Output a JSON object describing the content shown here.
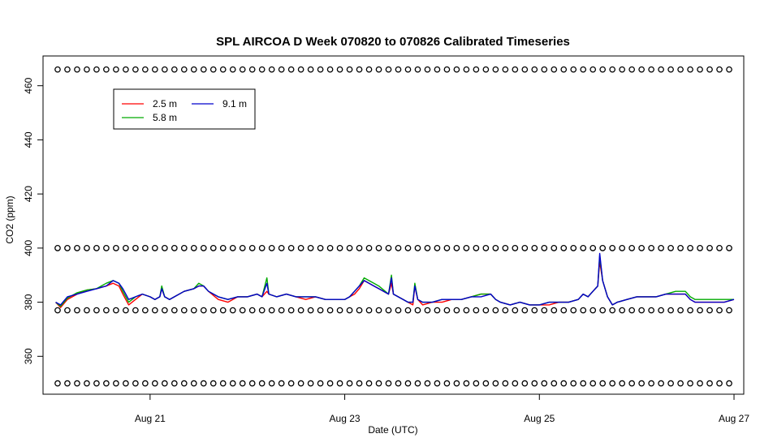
{
  "chart_data": {
    "type": "line",
    "title": "SPL AIRCOA D  Week 070820 to 070826  Calibrated Timeseries",
    "xlabel": "Date (UTC)",
    "ylabel": "CO2 (ppm)",
    "xlim": [
      19.9,
      27.1
    ],
    "ylim": [
      346,
      471
    ],
    "x_ticks": [
      {
        "value": 21,
        "label": "Aug 21"
      },
      {
        "value": 23,
        "label": "Aug 23"
      },
      {
        "value": 25,
        "label": "Aug 25"
      },
      {
        "value": 27,
        "label": "Aug 27"
      }
    ],
    "y_ticks": [
      360,
      380,
      400,
      420,
      440,
      460
    ],
    "grid": false,
    "legend_position": "top-left",
    "series": [
      {
        "name": "2.5 m",
        "color": "#ff0000",
        "points": [
          [
            20.03,
            380
          ],
          [
            20.08,
            378
          ],
          [
            20.15,
            381
          ],
          [
            20.25,
            383
          ],
          [
            20.35,
            384.5
          ],
          [
            20.45,
            385
          ],
          [
            20.55,
            386
          ],
          [
            20.62,
            387
          ],
          [
            20.68,
            386
          ],
          [
            20.72,
            383
          ],
          [
            20.78,
            379
          ],
          [
            20.85,
            381
          ],
          [
            20.92,
            383
          ],
          [
            21.0,
            382
          ],
          [
            21.05,
            381
          ],
          [
            21.1,
            382
          ],
          [
            21.12,
            385
          ],
          [
            21.15,
            382
          ],
          [
            21.2,
            381
          ],
          [
            21.25,
            382
          ],
          [
            21.35,
            384
          ],
          [
            21.45,
            385
          ],
          [
            21.5,
            386
          ],
          [
            21.55,
            386
          ],
          [
            21.6,
            384
          ],
          [
            21.7,
            381
          ],
          [
            21.8,
            380
          ],
          [
            21.9,
            382
          ],
          [
            22.0,
            382
          ],
          [
            22.1,
            383
          ],
          [
            22.15,
            382
          ],
          [
            22.2,
            384
          ],
          [
            22.22,
            383
          ],
          [
            22.3,
            382
          ],
          [
            22.4,
            383
          ],
          [
            22.5,
            382
          ],
          [
            22.6,
            381
          ],
          [
            22.7,
            382
          ],
          [
            22.8,
            381
          ],
          [
            22.9,
            381
          ],
          [
            23.0,
            381
          ],
          [
            23.05,
            382
          ],
          [
            23.1,
            383
          ],
          [
            23.15,
            385
          ],
          [
            23.2,
            388
          ],
          [
            23.3,
            386
          ],
          [
            23.35,
            385
          ],
          [
            23.45,
            383
          ],
          [
            23.48,
            387
          ],
          [
            23.5,
            383
          ],
          [
            23.6,
            381
          ],
          [
            23.65,
            380
          ],
          [
            23.7,
            379
          ],
          [
            23.72,
            386
          ],
          [
            23.75,
            381
          ],
          [
            23.8,
            379
          ],
          [
            23.9,
            380
          ],
          [
            24.0,
            380
          ],
          [
            24.1,
            381
          ],
          [
            24.2,
            381
          ],
          [
            24.3,
            382
          ],
          [
            24.4,
            383
          ],
          [
            24.5,
            383
          ],
          [
            24.55,
            381
          ],
          [
            24.6,
            380
          ],
          [
            24.7,
            379
          ],
          [
            24.8,
            380
          ],
          [
            24.9,
            379
          ],
          [
            25.0,
            379
          ],
          [
            25.1,
            379
          ],
          [
            25.2,
            380
          ],
          [
            25.3,
            380
          ],
          [
            25.4,
            381
          ],
          [
            25.45,
            383
          ],
          [
            25.5,
            382
          ],
          [
            25.55,
            384
          ],
          [
            25.6,
            386
          ],
          [
            25.62,
            395
          ],
          [
            25.65,
            388
          ],
          [
            25.7,
            382
          ],
          [
            25.75,
            379
          ],
          [
            25.8,
            380
          ],
          [
            25.9,
            381
          ],
          [
            26.0,
            382
          ],
          [
            26.1,
            382
          ],
          [
            26.2,
            382
          ],
          [
            26.3,
            383
          ],
          [
            26.4,
            383
          ],
          [
            26.5,
            383
          ],
          [
            26.55,
            381
          ],
          [
            26.6,
            380
          ],
          [
            26.7,
            380
          ],
          [
            26.8,
            380
          ],
          [
            26.9,
            380
          ],
          [
            27.0,
            381
          ]
        ]
      },
      {
        "name": "5.8 m",
        "color": "#00aa00",
        "points": [
          [
            20.03,
            380
          ],
          [
            20.08,
            378.5
          ],
          [
            20.15,
            381.5
          ],
          [
            20.25,
            383.5
          ],
          [
            20.35,
            384.5
          ],
          [
            20.45,
            385
          ],
          [
            20.55,
            387
          ],
          [
            20.62,
            388
          ],
          [
            20.68,
            387
          ],
          [
            20.72,
            384
          ],
          [
            20.78,
            380
          ],
          [
            20.85,
            382
          ],
          [
            20.92,
            383
          ],
          [
            21.0,
            382
          ],
          [
            21.05,
            381
          ],
          [
            21.1,
            382
          ],
          [
            21.12,
            386
          ],
          [
            21.15,
            382
          ],
          [
            21.2,
            381
          ],
          [
            21.25,
            382
          ],
          [
            21.35,
            384
          ],
          [
            21.45,
            385
          ],
          [
            21.5,
            387
          ],
          [
            21.55,
            386
          ],
          [
            21.6,
            384
          ],
          [
            21.7,
            382
          ],
          [
            21.8,
            381
          ],
          [
            21.9,
            382
          ],
          [
            22.0,
            382
          ],
          [
            22.1,
            383
          ],
          [
            22.15,
            382
          ],
          [
            22.2,
            389
          ],
          [
            22.22,
            383
          ],
          [
            22.3,
            382
          ],
          [
            22.4,
            383
          ],
          [
            22.5,
            382
          ],
          [
            22.6,
            382
          ],
          [
            22.7,
            382
          ],
          [
            22.8,
            381
          ],
          [
            22.9,
            381
          ],
          [
            23.0,
            381
          ],
          [
            23.05,
            382
          ],
          [
            23.1,
            384
          ],
          [
            23.15,
            386
          ],
          [
            23.2,
            389
          ],
          [
            23.3,
            387
          ],
          [
            23.35,
            386
          ],
          [
            23.45,
            383
          ],
          [
            23.48,
            390
          ],
          [
            23.5,
            383
          ],
          [
            23.6,
            381
          ],
          [
            23.65,
            380
          ],
          [
            23.7,
            380
          ],
          [
            23.72,
            387
          ],
          [
            23.75,
            381
          ],
          [
            23.8,
            380
          ],
          [
            23.9,
            380
          ],
          [
            24.0,
            381
          ],
          [
            24.1,
            381
          ],
          [
            24.2,
            381
          ],
          [
            24.3,
            382
          ],
          [
            24.4,
            383
          ],
          [
            24.5,
            383
          ],
          [
            24.55,
            381
          ],
          [
            24.6,
            380
          ],
          [
            24.7,
            379
          ],
          [
            24.8,
            380
          ],
          [
            24.9,
            379
          ],
          [
            25.0,
            379
          ],
          [
            25.1,
            380
          ],
          [
            25.2,
            380
          ],
          [
            25.3,
            380
          ],
          [
            25.4,
            381
          ],
          [
            25.45,
            383
          ],
          [
            25.5,
            382
          ],
          [
            25.55,
            384
          ],
          [
            25.6,
            386
          ],
          [
            25.62,
            397
          ],
          [
            25.65,
            388
          ],
          [
            25.7,
            382
          ],
          [
            25.75,
            379
          ],
          [
            25.8,
            380
          ],
          [
            25.9,
            381
          ],
          [
            26.0,
            382
          ],
          [
            26.1,
            382
          ],
          [
            26.2,
            382
          ],
          [
            26.3,
            383
          ],
          [
            26.4,
            384
          ],
          [
            26.5,
            384
          ],
          [
            26.55,
            382
          ],
          [
            26.6,
            381
          ],
          [
            26.7,
            381
          ],
          [
            26.8,
            381
          ],
          [
            26.9,
            381
          ],
          [
            27.0,
            381
          ]
        ]
      },
      {
        "name": "9.1 m",
        "color": "#0000cc",
        "points": [
          [
            20.03,
            380
          ],
          [
            20.08,
            379
          ],
          [
            20.15,
            382
          ],
          [
            20.25,
            383
          ],
          [
            20.35,
            384
          ],
          [
            20.45,
            385
          ],
          [
            20.55,
            386
          ],
          [
            20.62,
            388
          ],
          [
            20.68,
            387
          ],
          [
            20.72,
            385
          ],
          [
            20.78,
            381
          ],
          [
            20.85,
            382
          ],
          [
            20.92,
            383
          ],
          [
            21.0,
            382
          ],
          [
            21.05,
            381
          ],
          [
            21.1,
            382
          ],
          [
            21.12,
            385
          ],
          [
            21.15,
            382
          ],
          [
            21.2,
            381
          ],
          [
            21.25,
            382
          ],
          [
            21.35,
            384
          ],
          [
            21.45,
            385
          ],
          [
            21.5,
            386
          ],
          [
            21.55,
            386
          ],
          [
            21.6,
            384
          ],
          [
            21.7,
            382
          ],
          [
            21.8,
            381
          ],
          [
            21.9,
            382
          ],
          [
            22.0,
            382
          ],
          [
            22.1,
            383
          ],
          [
            22.15,
            382
          ],
          [
            22.2,
            387
          ],
          [
            22.22,
            383
          ],
          [
            22.3,
            382
          ],
          [
            22.4,
            383
          ],
          [
            22.5,
            382
          ],
          [
            22.6,
            382
          ],
          [
            22.7,
            382
          ],
          [
            22.8,
            381
          ],
          [
            22.9,
            381
          ],
          [
            23.0,
            381
          ],
          [
            23.05,
            382
          ],
          [
            23.1,
            384
          ],
          [
            23.15,
            386
          ],
          [
            23.2,
            388
          ],
          [
            23.3,
            386
          ],
          [
            23.35,
            385
          ],
          [
            23.45,
            383
          ],
          [
            23.48,
            389
          ],
          [
            23.5,
            383
          ],
          [
            23.6,
            381
          ],
          [
            23.65,
            380
          ],
          [
            23.7,
            380
          ],
          [
            23.72,
            386
          ],
          [
            23.75,
            381
          ],
          [
            23.8,
            380
          ],
          [
            23.9,
            380
          ],
          [
            24.0,
            381
          ],
          [
            24.1,
            381
          ],
          [
            24.2,
            381
          ],
          [
            24.3,
            382
          ],
          [
            24.4,
            382
          ],
          [
            24.5,
            383
          ],
          [
            24.55,
            381
          ],
          [
            24.6,
            380
          ],
          [
            24.7,
            379
          ],
          [
            24.8,
            380
          ],
          [
            24.9,
            379
          ],
          [
            25.0,
            379
          ],
          [
            25.1,
            380
          ],
          [
            25.2,
            380
          ],
          [
            25.3,
            380
          ],
          [
            25.4,
            381
          ],
          [
            25.45,
            383
          ],
          [
            25.5,
            382
          ],
          [
            25.55,
            384
          ],
          [
            25.6,
            386
          ],
          [
            25.62,
            398
          ],
          [
            25.65,
            388
          ],
          [
            25.7,
            382
          ],
          [
            25.75,
            379
          ],
          [
            25.8,
            380
          ],
          [
            25.9,
            381
          ],
          [
            26.0,
            382
          ],
          [
            26.1,
            382
          ],
          [
            26.2,
            382
          ],
          [
            26.3,
            383
          ],
          [
            26.4,
            383
          ],
          [
            26.5,
            383
          ],
          [
            26.55,
            381
          ],
          [
            26.6,
            380
          ],
          [
            26.7,
            380
          ],
          [
            26.8,
            380
          ],
          [
            26.9,
            380
          ],
          [
            27.0,
            381
          ]
        ]
      }
    ],
    "calibration_markers": {
      "marker": "open-circle",
      "color": "#000000",
      "levels": [
        466,
        400,
        377,
        350
      ],
      "x_start": 20.05,
      "x_end": 27.0,
      "spacing": 0.1
    }
  }
}
